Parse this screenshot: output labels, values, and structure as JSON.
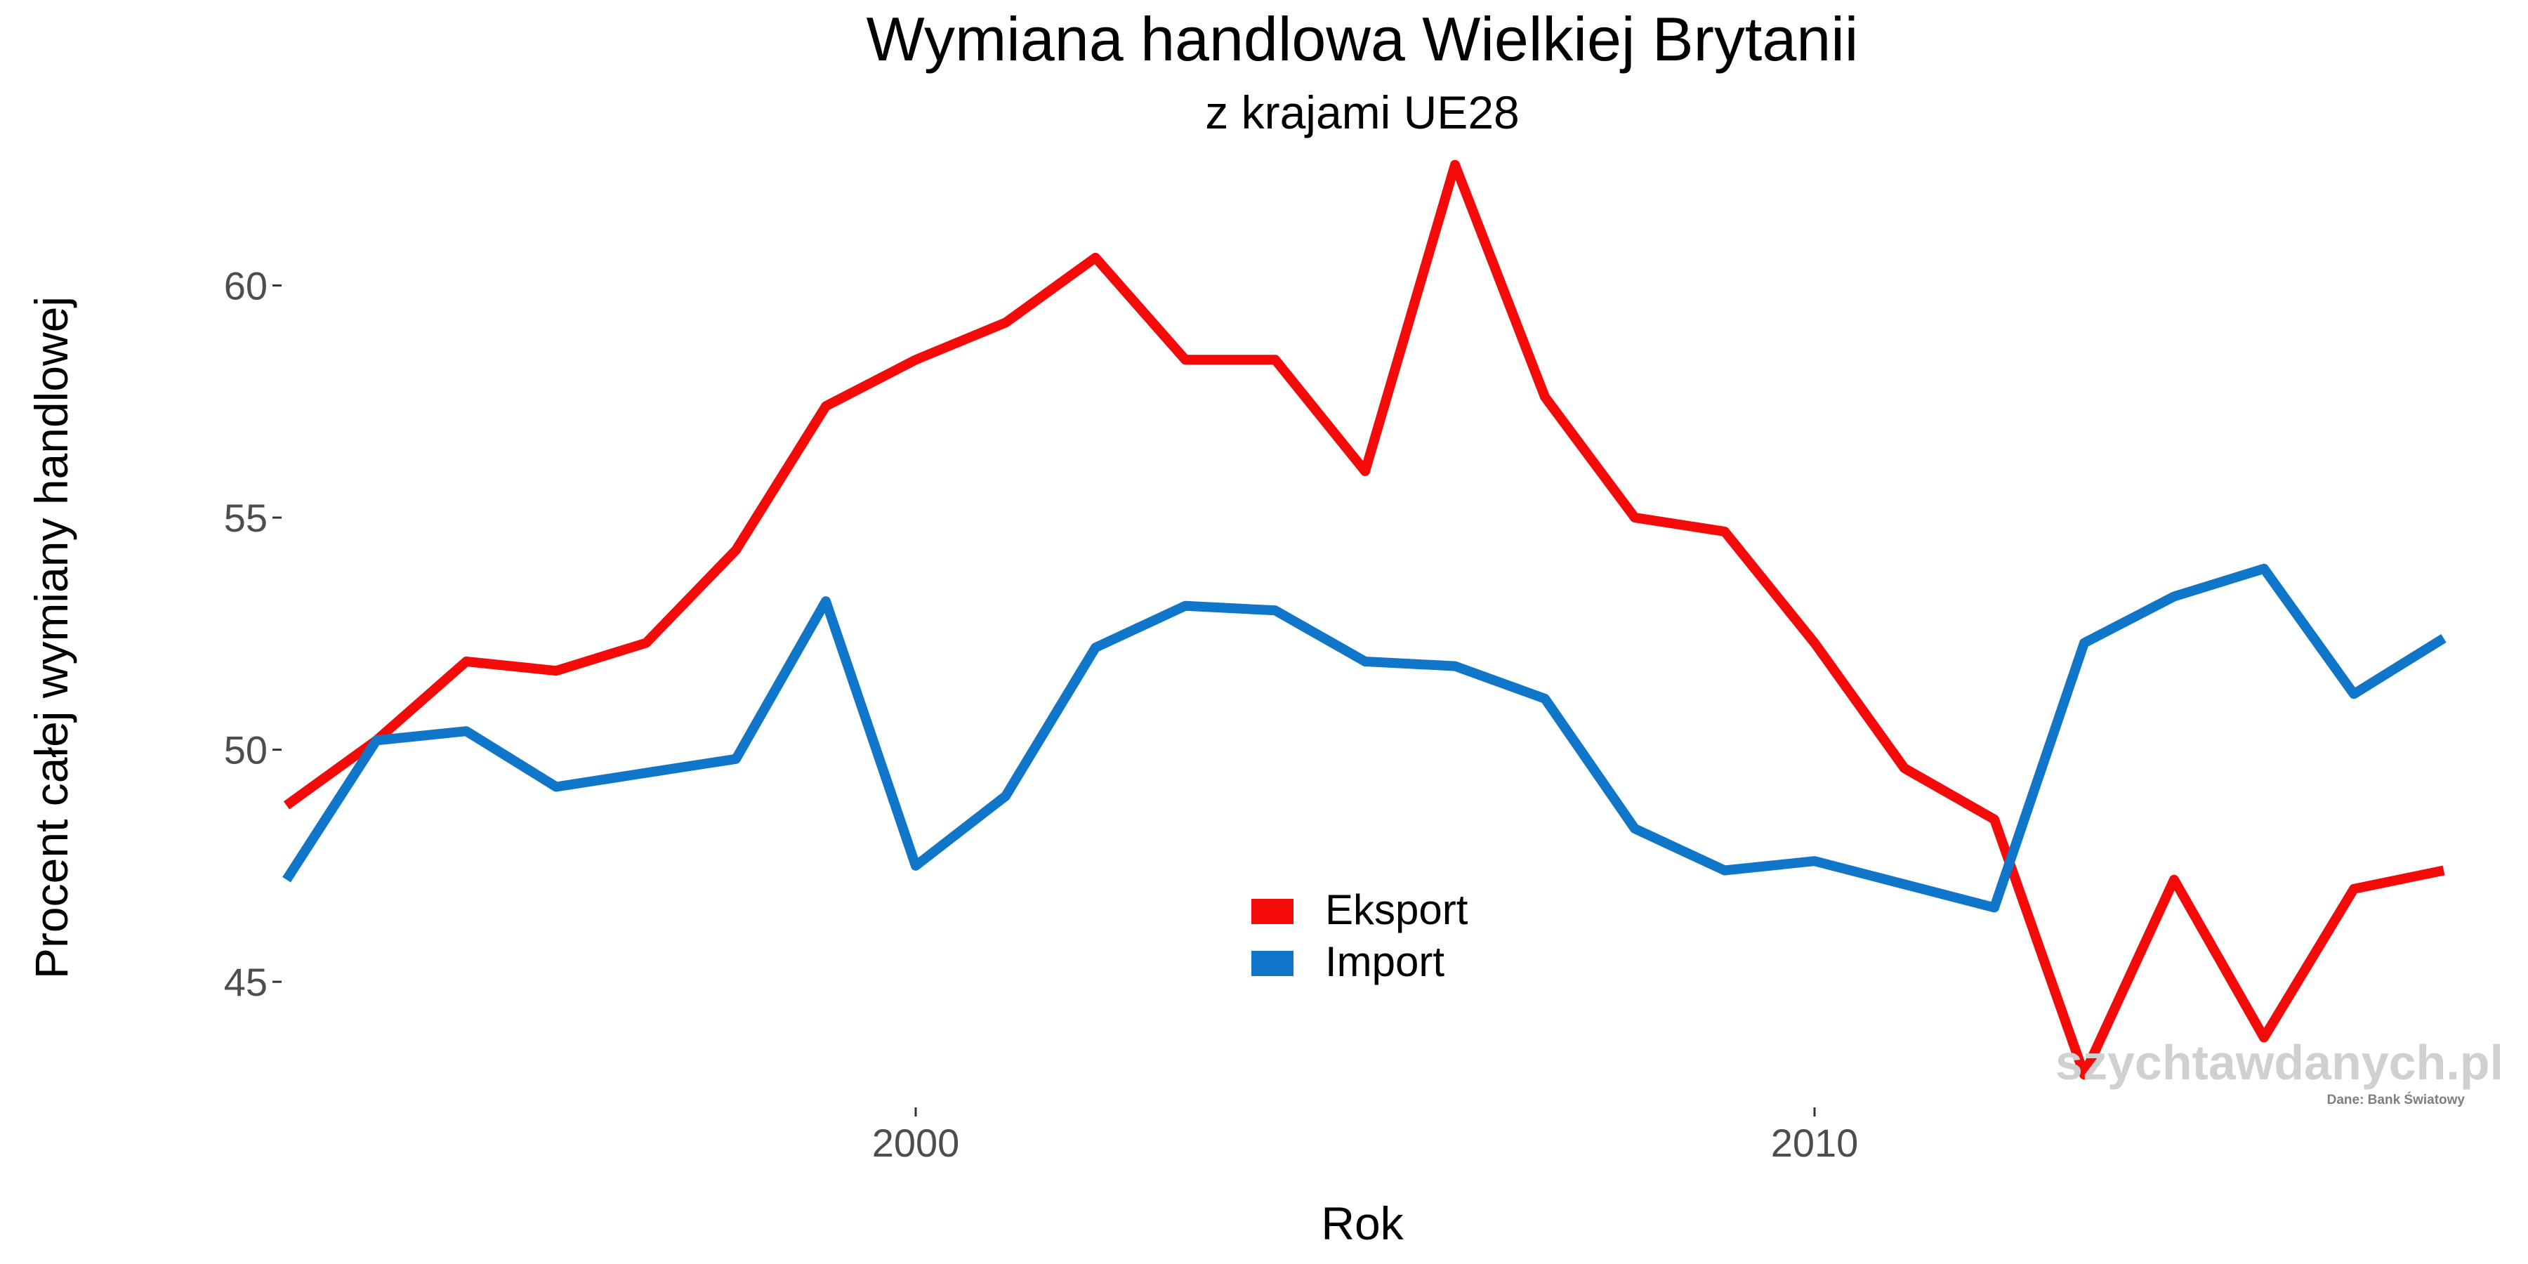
{
  "chart_data": {
    "type": "line",
    "title": "Wymiana handlowa Wielkiej Brytanii",
    "subtitle": "z krajami UE28",
    "xlabel": "Rok",
    "ylabel": "Procent całej wymiany handlowej",
    "x": [
      1993,
      1994,
      1995,
      1996,
      1997,
      1998,
      1999,
      2000,
      2001,
      2002,
      2003,
      2004,
      2005,
      2006,
      2007,
      2008,
      2009,
      2010,
      2011,
      2012,
      2013,
      2014,
      2015,
      2016,
      2017
    ],
    "series": [
      {
        "name": "Eksport",
        "color": "#f50a0a",
        "values": [
          48.8,
          50.2,
          51.9,
          51.7,
          52.3,
          54.3,
          57.4,
          58.4,
          59.2,
          60.6,
          58.4,
          58.4,
          56.0,
          62.6,
          57.6,
          55.0,
          54.7,
          52.3,
          49.6,
          48.5,
          43.0,
          47.2,
          43.8,
          47.0,
          47.4
        ]
      },
      {
        "name": "Import",
        "color": "#1076c9",
        "values": [
          47.2,
          50.2,
          50.4,
          49.2,
          49.5,
          49.8,
          53.2,
          47.5,
          49.0,
          52.2,
          53.1,
          53.0,
          51.9,
          51.8,
          51.1,
          48.3,
          47.4,
          47.6,
          47.1,
          46.6,
          52.3,
          53.3,
          53.9,
          51.2,
          52.4
        ]
      }
    ],
    "xticks": [
      2000,
      2010
    ],
    "xtick_labels": [
      "2000",
      "2010"
    ],
    "yticks": [
      45,
      50,
      55,
      60
    ],
    "ytick_labels": [
      "45",
      "50",
      "55",
      "60"
    ],
    "xlim": [
      1993,
      2017
    ],
    "ylim": [
      42.4,
      63.2
    ],
    "grid": false,
    "legend_position": "bottom-center"
  },
  "watermark": "szychtawdanych.pl",
  "source_note": "Dane: Bank Światowy"
}
